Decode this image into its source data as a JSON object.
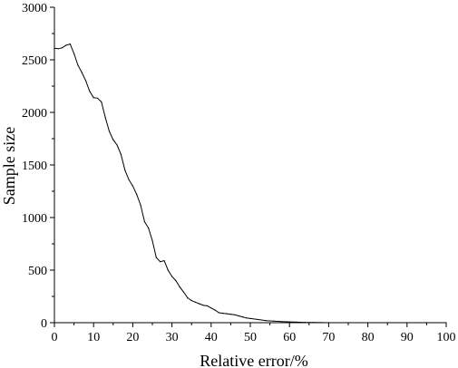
{
  "chart_data": {
    "type": "line",
    "xlabel": "Relative error/%",
    "ylabel": "Sample size",
    "xlim": [
      0,
      100
    ],
    "ylim": [
      0,
      3000
    ],
    "xticks": [
      0,
      10,
      20,
      30,
      40,
      50,
      60,
      70,
      80,
      90,
      100
    ],
    "yticks": [
      0,
      500,
      1000,
      1500,
      2000,
      2500,
      3000
    ],
    "grid": false,
    "series": [
      {
        "color": "#000000",
        "x": [
          0,
          1,
          2,
          3,
          4,
          5,
          6,
          7,
          8,
          9,
          10,
          11,
          12,
          13,
          14,
          15,
          16,
          17,
          18,
          19,
          20,
          21,
          22,
          23,
          24,
          25,
          26,
          27,
          28,
          29,
          30,
          31,
          32,
          33,
          34,
          35,
          36,
          37,
          38,
          39,
          40,
          41,
          42,
          43,
          44,
          45,
          46,
          47,
          48,
          49,
          50,
          52,
          54,
          56,
          58,
          60,
          62,
          64,
          66,
          68,
          70,
          75,
          80,
          85,
          90,
          95,
          100
        ],
        "y": [
          2610,
          2605,
          2615,
          2640,
          2650,
          2560,
          2450,
          2380,
          2300,
          2200,
          2140,
          2135,
          2100,
          1950,
          1820,
          1740,
          1690,
          1600,
          1450,
          1360,
          1300,
          1220,
          1120,
          960,
          900,
          780,
          620,
          580,
          590,
          500,
          440,
          400,
          340,
          290,
          235,
          210,
          195,
          180,
          165,
          160,
          140,
          120,
          95,
          90,
          85,
          80,
          75,
          65,
          55,
          45,
          40,
          30,
          20,
          15,
          10,
          8,
          5,
          3,
          2,
          1,
          0,
          0,
          0,
          0,
          0,
          0,
          0
        ]
      }
    ]
  }
}
